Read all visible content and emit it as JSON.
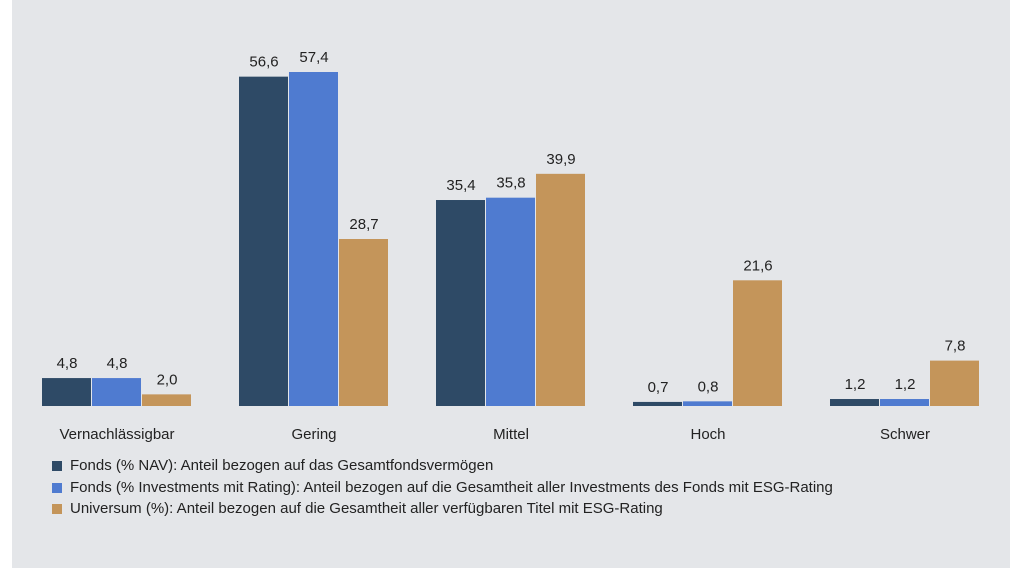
{
  "chart_data": {
    "type": "bar",
    "categories": [
      "Vernachlässigbar",
      "Gering",
      "Mittel",
      "Hoch",
      "Schwer"
    ],
    "series": [
      {
        "name": "Fonds (% NAV): Anteil bezogen auf das Gesamtfondsvermögen",
        "color": "#2e4a66",
        "values": [
          4.8,
          56.6,
          35.4,
          0.7,
          1.2
        ],
        "value_labels": [
          "4,8",
          "56,6",
          "35,4",
          "0,7",
          "1,2"
        ]
      },
      {
        "name": "Fonds (% Investments mit Rating): Anteil bezogen auf die Gesamtheit aller Investments des Fonds mit ESG-Rating",
        "color": "#4f7bd0",
        "values": [
          4.8,
          57.4,
          35.8,
          0.8,
          1.2
        ],
        "value_labels": [
          "4,8",
          "57,4",
          "35,8",
          "0,8",
          "1,2"
        ]
      },
      {
        "name": "Universum (%): Anteil bezogen auf die Gesamtheit aller verfügbaren Titel mit ESG-Rating",
        "color": "#c4955a",
        "values": [
          2.0,
          28.7,
          39.9,
          21.6,
          7.8
        ],
        "value_labels": [
          "2,0",
          "28,7",
          "39,9",
          "21,6",
          "7,8"
        ]
      }
    ],
    "legend": "bottom-left"
  }
}
